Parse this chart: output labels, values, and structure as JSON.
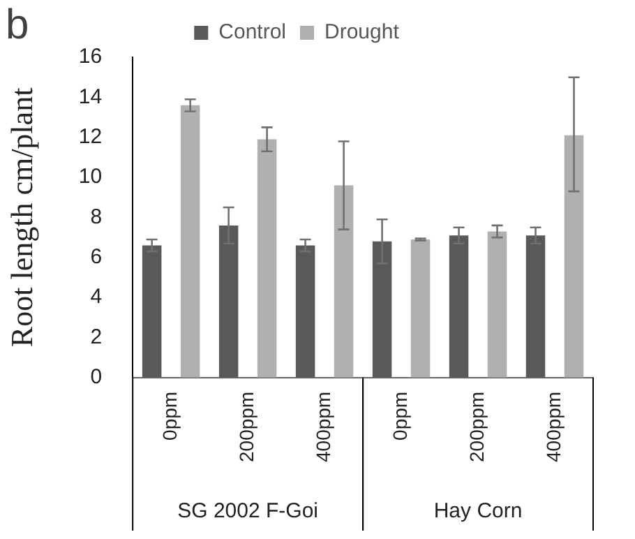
{
  "chart_data": {
    "type": "bar",
    "ylabel": "Root length cm/plant",
    "categories": [
      "0ppm",
      "200ppm",
      "400ppm",
      "0ppm",
      "200ppm",
      "400ppm"
    ],
    "series": [
      {
        "name": "Control",
        "color": "#595959",
        "values": [
          6.6,
          7.6,
          6.6,
          6.8,
          7.1,
          7.1
        ],
        "errors": [
          0.3,
          0.9,
          0.3,
          1.1,
          0.4,
          0.4
        ]
      },
      {
        "name": "Drought",
        "color": "#b0b0b0",
        "values": [
          13.6,
          11.9,
          9.6,
          6.9,
          7.3,
          12.1
        ],
        "errors": [
          0.3,
          0.6,
          2.2,
          0.05,
          0.3,
          [
            9.3,
            15.0
          ]
        ]
      }
    ],
    "ylim": [
      0,
      16
    ],
    "yticks": [
      0,
      2,
      4,
      6,
      8,
      10,
      12,
      14,
      16
    ],
    "grid": false,
    "legend": "top",
    "annotations": [
      "b",
      "SG 2002 F-Goi",
      "Hay Corn"
    ]
  }
}
